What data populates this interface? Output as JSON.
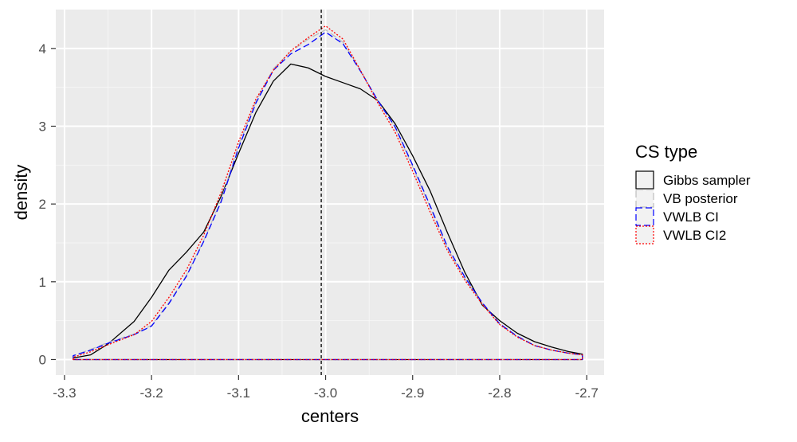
{
  "chart_data": {
    "type": "line",
    "xlabel": "centers",
    "ylabel": "density",
    "xlim": [
      -3.31,
      -2.68
    ],
    "ylim": [
      -0.2,
      4.5
    ],
    "x_ticks": [
      -3.3,
      -3.2,
      -3.1,
      -3.0,
      -2.9,
      -2.8,
      -2.7
    ],
    "x_tick_labels": [
      "-3.3",
      "-3.2",
      "-3.1",
      "-3.0",
      "-2.9",
      "-2.8",
      "-2.7"
    ],
    "y_ticks": [
      0,
      1,
      2,
      3,
      4
    ],
    "y_tick_labels": [
      "0",
      "1",
      "2",
      "3",
      "4"
    ],
    "grid": true,
    "background": "#ebebeb",
    "reference_line": {
      "x": -3.005,
      "style": "dashed",
      "color": "#000000"
    },
    "legend": {
      "title": "CS type",
      "position": "right",
      "entries": [
        "Gibbs sampler",
        "VB posterior",
        "VWLB CI",
        "VWLB CI2"
      ]
    },
    "series": [
      {
        "name": "Gibbs sampler",
        "color": "#000000",
        "dash": "solid",
        "x": [
          -3.29,
          -3.27,
          -3.25,
          -3.22,
          -3.2,
          -3.18,
          -3.16,
          -3.14,
          -3.12,
          -3.1,
          -3.08,
          -3.06,
          -3.04,
          -3.02,
          -3.0,
          -2.98,
          -2.96,
          -2.94,
          -2.92,
          -2.9,
          -2.88,
          -2.86,
          -2.84,
          -2.82,
          -2.8,
          -2.78,
          -2.76,
          -2.74,
          -2.72,
          -2.705
        ],
        "y": [
          0.02,
          0.06,
          0.2,
          0.49,
          0.8,
          1.15,
          1.38,
          1.64,
          2.1,
          2.65,
          3.18,
          3.58,
          3.8,
          3.75,
          3.64,
          3.56,
          3.48,
          3.33,
          3.03,
          2.62,
          2.17,
          1.63,
          1.12,
          0.7,
          0.5,
          0.34,
          0.23,
          0.16,
          0.1,
          0.07
        ]
      },
      {
        "name": "VB posterior",
        "color": "#bdbdbd",
        "dash": "longdash",
        "x": [
          -3.29,
          -3.27,
          -3.25,
          -3.22,
          -3.2,
          -3.18,
          -3.16,
          -3.14,
          -3.12,
          -3.1,
          -3.08,
          -3.06,
          -3.04,
          -3.02,
          -3.0,
          -2.98,
          -2.96,
          -2.94,
          -2.92,
          -2.9,
          -2.88,
          -2.86,
          -2.84,
          -2.82,
          -2.8,
          -2.78,
          -2.76,
          -2.74,
          -2.72,
          -2.705
        ],
        "y": [
          0.05,
          0.13,
          0.22,
          0.33,
          0.44,
          0.73,
          1.08,
          1.53,
          2.05,
          2.75,
          3.32,
          3.74,
          3.96,
          4.12,
          4.24,
          4.08,
          3.72,
          3.33,
          2.98,
          2.48,
          1.96,
          1.43,
          1.04,
          0.72,
          0.45,
          0.3,
          0.18,
          0.12,
          0.08,
          0.06
        ]
      },
      {
        "name": "VWLB CI",
        "color": "#0000ff",
        "dash": "dashed",
        "x": [
          -3.29,
          -3.27,
          -3.25,
          -3.22,
          -3.2,
          -3.18,
          -3.16,
          -3.14,
          -3.12,
          -3.1,
          -3.08,
          -3.06,
          -3.04,
          -3.02,
          -3.0,
          -2.98,
          -2.96,
          -2.94,
          -2.92,
          -2.9,
          -2.88,
          -2.86,
          -2.84,
          -2.82,
          -2.8,
          -2.78,
          -2.76,
          -2.74,
          -2.72,
          -2.705
        ],
        "y": [
          0.05,
          0.12,
          0.21,
          0.32,
          0.43,
          0.72,
          1.07,
          1.52,
          2.03,
          2.72,
          3.3,
          3.72,
          3.93,
          4.05,
          4.21,
          4.06,
          3.71,
          3.33,
          2.99,
          2.5,
          1.98,
          1.45,
          1.06,
          0.73,
          0.46,
          0.3,
          0.18,
          0.12,
          0.08,
          0.06
        ]
      },
      {
        "name": "VWLB CI2",
        "color": "#ff0000",
        "dash": "dotted",
        "x": [
          -3.29,
          -3.27,
          -3.25,
          -3.22,
          -3.2,
          -3.18,
          -3.16,
          -3.14,
          -3.12,
          -3.1,
          -3.08,
          -3.06,
          -3.04,
          -3.02,
          -3.0,
          -2.98,
          -2.96,
          -2.94,
          -2.92,
          -2.9,
          -2.88,
          -2.86,
          -2.84,
          -2.82,
          -2.8,
          -2.78,
          -2.76,
          -2.74,
          -2.72,
          -2.705
        ],
        "y": [
          0.03,
          0.1,
          0.19,
          0.32,
          0.49,
          0.8,
          1.15,
          1.6,
          2.15,
          2.8,
          3.35,
          3.72,
          3.97,
          4.14,
          4.29,
          4.12,
          3.72,
          3.3,
          2.92,
          2.42,
          1.9,
          1.4,
          1.02,
          0.71,
          0.45,
          0.29,
          0.18,
          0.12,
          0.08,
          0.06
        ]
      }
    ]
  }
}
